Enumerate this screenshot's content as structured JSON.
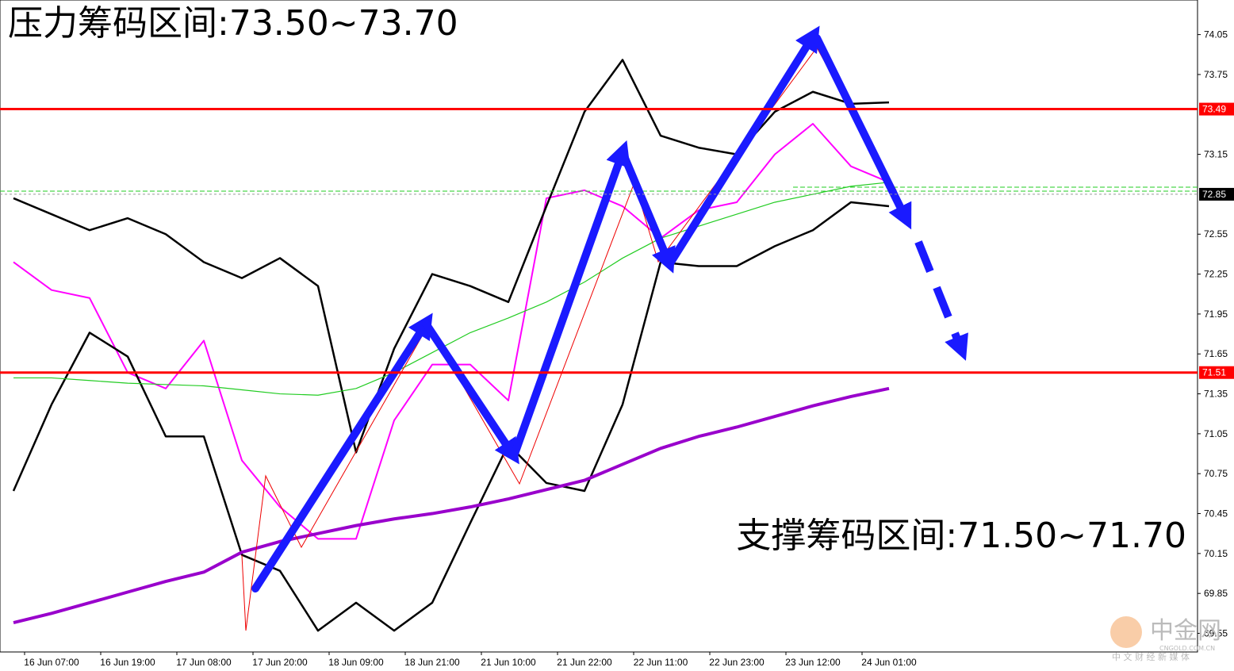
{
  "chart_data": {
    "type": "line",
    "title": "压力筹码区间:73.50~73.70",
    "annotation": "支撑筹码区间:71.50~71.70",
    "categories": [
      null,
      "16 Jun 07:00",
      null,
      "16 Jun 19:00",
      null,
      "17 Jun 08:00",
      null,
      "17 Jun 20:00",
      null,
      "18 Jun 09:00",
      null,
      "18 Jun 21:00",
      null,
      "21 Jun 10:00",
      null,
      "21 Jun 22:00",
      null,
      "22 Jun 11:00",
      null,
      "22 Jun 23:00",
      null,
      "23 Jun 12:00",
      null,
      "24 Jun 01:00"
    ],
    "series": [
      {
        "color": "#ff00ff",
        "width": 2,
        "values": [
          72.34,
          72.13,
          72.07,
          71.51,
          71.39,
          71.75,
          70.85,
          70.5,
          70.26,
          70.26,
          71.15,
          71.57,
          71.57,
          71.3,
          72.82,
          72.88,
          72.76,
          72.52,
          72.73,
          72.79,
          73.15,
          73.38,
          73.06,
          72.94
        ]
      },
      {
        "color": "#000000",
        "width": 2.5,
        "values": [
          72.82,
          72.7,
          72.58,
          72.67,
          72.55,
          72.34,
          72.22,
          72.37,
          72.16,
          70.91,
          71.69,
          72.25,
          72.16,
          72.04,
          72.76,
          73.47,
          73.86,
          73.29,
          73.2,
          73.15,
          73.47,
          73.62,
          73.53,
          73.54
        ]
      },
      {
        "color": "#000000",
        "width": 2.5,
        "values": [
          70.62,
          71.27,
          71.81,
          71.63,
          71.03,
          71.03,
          70.14,
          70.02,
          69.57,
          69.78,
          69.57,
          69.78,
          70.38,
          70.97,
          70.68,
          70.62,
          71.27,
          72.34,
          72.31,
          72.31,
          72.46,
          72.58,
          72.79,
          72.76
        ]
      },
      {
        "color": "#9900cc",
        "width": 4,
        "values": [
          69.63,
          69.7,
          69.78,
          69.86,
          69.94,
          70.01,
          70.16,
          70.24,
          70.3,
          70.36,
          70.41,
          70.45,
          70.5,
          70.56,
          70.63,
          70.7,
          70.82,
          70.94,
          71.03,
          71.1,
          71.18,
          71.26,
          71.33,
          71.39
        ]
      },
      {
        "color": "#22cc22",
        "width": 1.2,
        "values": [
          71.47,
          71.47,
          71.45,
          71.43,
          71.42,
          71.41,
          71.38,
          71.35,
          71.34,
          71.39,
          71.51,
          71.66,
          71.81,
          71.92,
          72.04,
          72.19,
          72.37,
          72.52,
          72.61,
          72.7,
          72.79,
          72.85,
          72.91,
          72.94
        ]
      }
    ],
    "levels": [
      {
        "value": 73.49,
        "color": "#ff0000"
      },
      {
        "value": 71.51,
        "color": "#ff0000"
      }
    ],
    "current_price": 72.85,
    "ylim": [
      69.41,
      74.31
    ],
    "yticks": [
      74.05,
      73.75,
      73.15,
      72.55,
      72.25,
      71.95,
      71.65,
      71.35,
      71.05,
      70.75,
      70.45,
      70.15,
      69.85,
      69.55
    ]
  },
  "watermark": {
    "name": "中金网",
    "domain": "CNGOLD.COM.CN",
    "slogan": "中 文 财 经 新 媒 体"
  }
}
